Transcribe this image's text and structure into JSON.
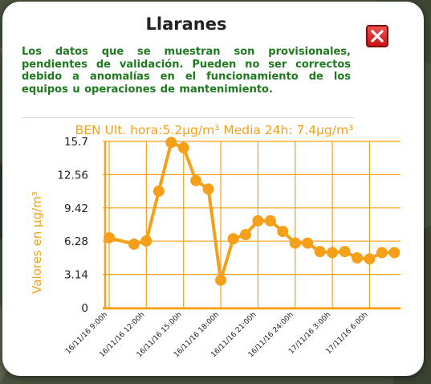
{
  "popup": {
    "title": "Llaranes",
    "notice": "Los datos que se muestran son provisionales, pendientes de validación. Pueden no ser correctos debido a anomalías en el funcionamiento de los equipos u operaciones de mantenimiento.",
    "close_icon": "close-x-icon"
  },
  "colors": {
    "accent": "#f5a018",
    "notice_text": "#1f7a1f",
    "close_button": "#e02020"
  },
  "chart_data": {
    "type": "line",
    "title": "BEN Ult. hora:5.2µg/m³ Media 24h: 7.4µg/m³",
    "xlabel": "",
    "ylabel": "Valores en µg/m³",
    "ylim": [
      0,
      15.7
    ],
    "yticks": [
      "15.7",
      "12.56",
      "9.42",
      "6.28",
      "3.14",
      "0"
    ],
    "xticks": [
      "16/11/16 9:00h",
      "16/11/16 12:00h",
      "16/11/16 15:00h",
      "16/11/16 18:00h",
      "16/11/16 21:00h",
      "16/11/16 24:00h",
      "17/11/16 3:00h",
      "17/11/16 6:00h"
    ],
    "grid": true,
    "x_hours": [
      9,
      11,
      12,
      13,
      14,
      15,
      16,
      17,
      18,
      19,
      20,
      21,
      22,
      23,
      24,
      25,
      26,
      27,
      28,
      29,
      30,
      31,
      32
    ],
    "values": [
      6.6,
      6.0,
      6.3,
      11.0,
      15.6,
      15.1,
      12.0,
      11.2,
      2.6,
      6.5,
      6.9,
      8.2,
      8.2,
      7.2,
      6.1,
      6.1,
      5.3,
      5.2,
      5.3,
      4.7,
      4.6,
      5.2,
      5.2
    ]
  }
}
